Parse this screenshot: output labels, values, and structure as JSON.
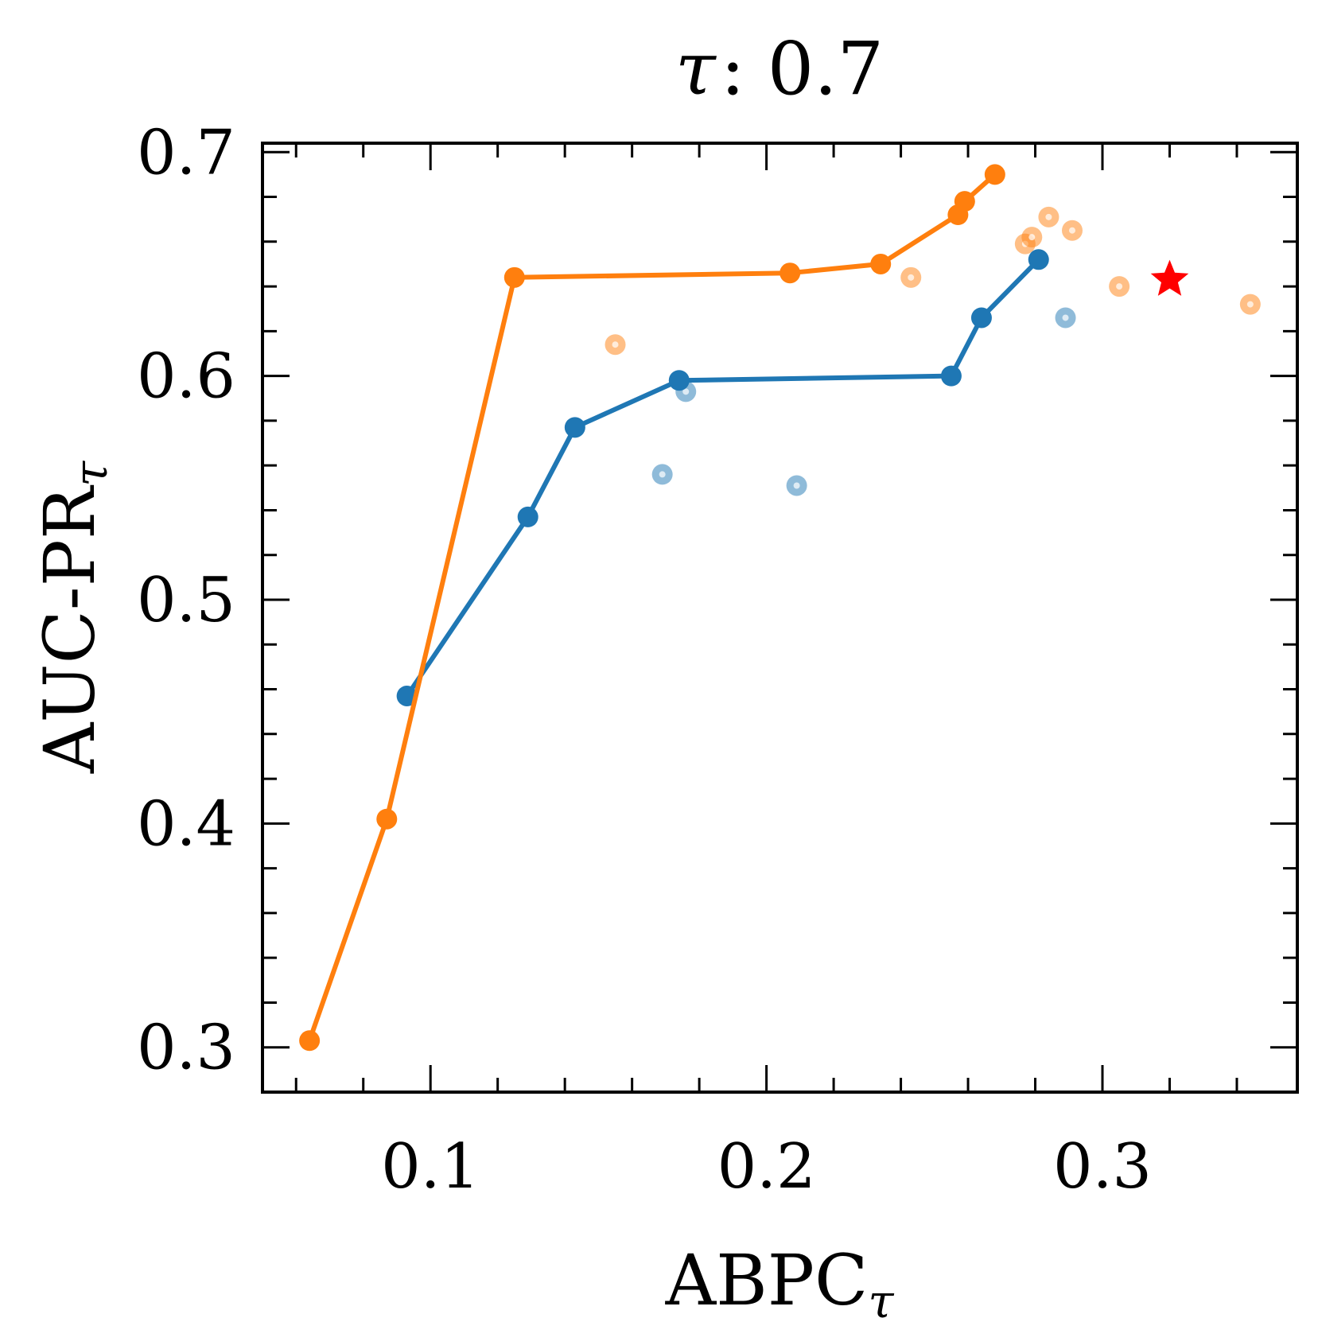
{
  "chart_data": {
    "type": "scatter",
    "title": {
      "symbol": "τ",
      "sep": ":",
      "value": "0.7"
    },
    "xlabel": {
      "main": "ABPC",
      "sub": "τ"
    },
    "ylabel": {
      "main": "AUC-PR",
      "sub": "τ"
    },
    "xlim": [
      0.05,
      0.358
    ],
    "ylim": [
      0.28,
      0.704
    ],
    "xticks": [
      0.1,
      0.2,
      0.3
    ],
    "xtick_labels": [
      "0.1",
      "0.2",
      "0.3"
    ],
    "xminor_step": 0.02,
    "yticks": [
      0.3,
      0.4,
      0.5,
      0.6,
      0.7
    ],
    "ytick_labels": [
      "0.3",
      "0.4",
      "0.5",
      "0.6",
      "0.7"
    ],
    "yminor_step": 0.02,
    "series": [
      {
        "name": "blue",
        "color": "#1f77b4",
        "frontier": [
          {
            "x": 0.093,
            "y": 0.457
          },
          {
            "x": 0.129,
            "y": 0.537
          },
          {
            "x": 0.143,
            "y": 0.577
          },
          {
            "x": 0.174,
            "y": 0.598
          },
          {
            "x": 0.255,
            "y": 0.6
          },
          {
            "x": 0.264,
            "y": 0.626
          },
          {
            "x": 0.281,
            "y": 0.652
          }
        ],
        "others": [
          {
            "x": 0.176,
            "y": 0.593
          },
          {
            "x": 0.169,
            "y": 0.556
          },
          {
            "x": 0.209,
            "y": 0.551
          },
          {
            "x": 0.289,
            "y": 0.626
          }
        ]
      },
      {
        "name": "orange",
        "color": "#ff7f0e",
        "frontier": [
          {
            "x": 0.064,
            "y": 0.303
          },
          {
            "x": 0.087,
            "y": 0.402
          },
          {
            "x": 0.125,
            "y": 0.644
          },
          {
            "x": 0.207,
            "y": 0.646
          },
          {
            "x": 0.234,
            "y": 0.65
          },
          {
            "x": 0.257,
            "y": 0.672
          },
          {
            "x": 0.259,
            "y": 0.678
          },
          {
            "x": 0.268,
            "y": 0.69
          }
        ],
        "others": [
          {
            "x": 0.155,
            "y": 0.614
          },
          {
            "x": 0.243,
            "y": 0.644
          },
          {
            "x": 0.277,
            "y": 0.659
          },
          {
            "x": 0.279,
            "y": 0.662
          },
          {
            "x": 0.284,
            "y": 0.671
          },
          {
            "x": 0.291,
            "y": 0.665
          },
          {
            "x": 0.305,
            "y": 0.64
          },
          {
            "x": 0.344,
            "y": 0.632
          }
        ]
      }
    ],
    "highlight": {
      "x": 0.32,
      "y": 0.643,
      "color": "#ff0000",
      "marker": "star"
    }
  }
}
